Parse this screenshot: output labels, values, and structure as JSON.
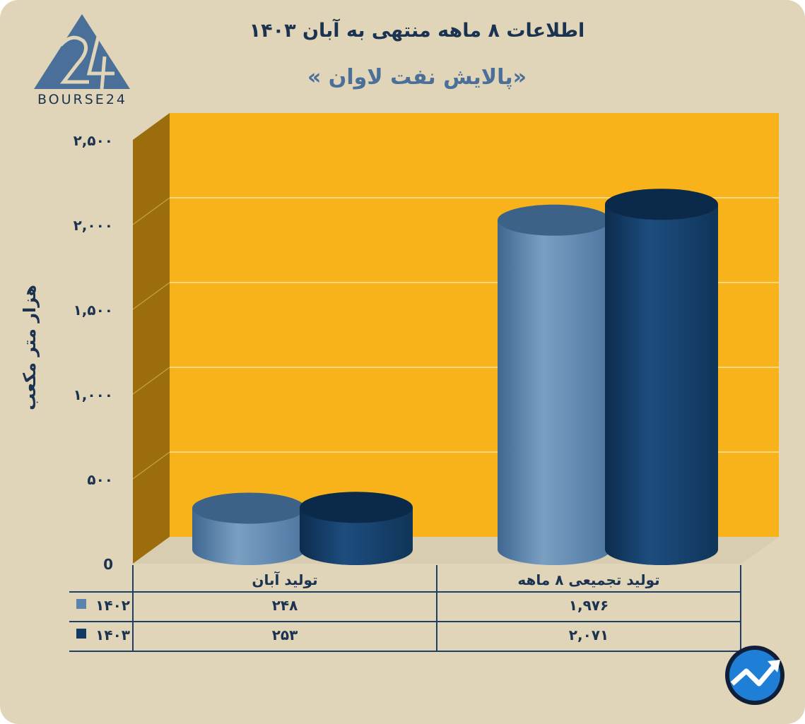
{
  "title": "اطلاعات ۸ ماهه منتهی به آبان ۱۴۰۳",
  "subtitle": "«پالایش نفت لاوان »",
  "logo_text": "BOURSE24",
  "colors": {
    "background": "#e0d5b8",
    "plot_back": "#f8b31b",
    "plot_side": "#9b6d0c",
    "series_1402": "#5a83ad",
    "series_1403": "#123a63",
    "text": "#1b3350",
    "subtitle": "#4a7099"
  },
  "chart_data": {
    "type": "bar",
    "categories": [
      "تولید آبان",
      "تولید تجمیعی ۸ ماهه"
    ],
    "series": [
      {
        "name": "۱۴۰۲",
        "values": [
          248,
          1976
        ],
        "labels": [
          "۲۴۸",
          "۱,۹۷۶"
        ]
      },
      {
        "name": "۱۴۰۳",
        "values": [
          253,
          2071
        ],
        "labels": [
          "۲۵۳",
          "۲,۰۷۱"
        ]
      }
    ],
    "ylabel": "هزار متر مکعب",
    "xlabel": "",
    "ylim": [
      0,
      2500
    ],
    "yticks": [
      0,
      500,
      1000,
      1500,
      2000,
      2500
    ],
    "ytick_labels": [
      "0",
      "۵۰۰",
      "۱,۰۰۰",
      "۱,۵۰۰",
      "۲,۰۰۰",
      "۲,۵۰۰"
    ],
    "grid": true,
    "legend": "data-table"
  },
  "icons": {
    "logo": "bourse24-logo",
    "corner": "trend-arrow-icon"
  }
}
